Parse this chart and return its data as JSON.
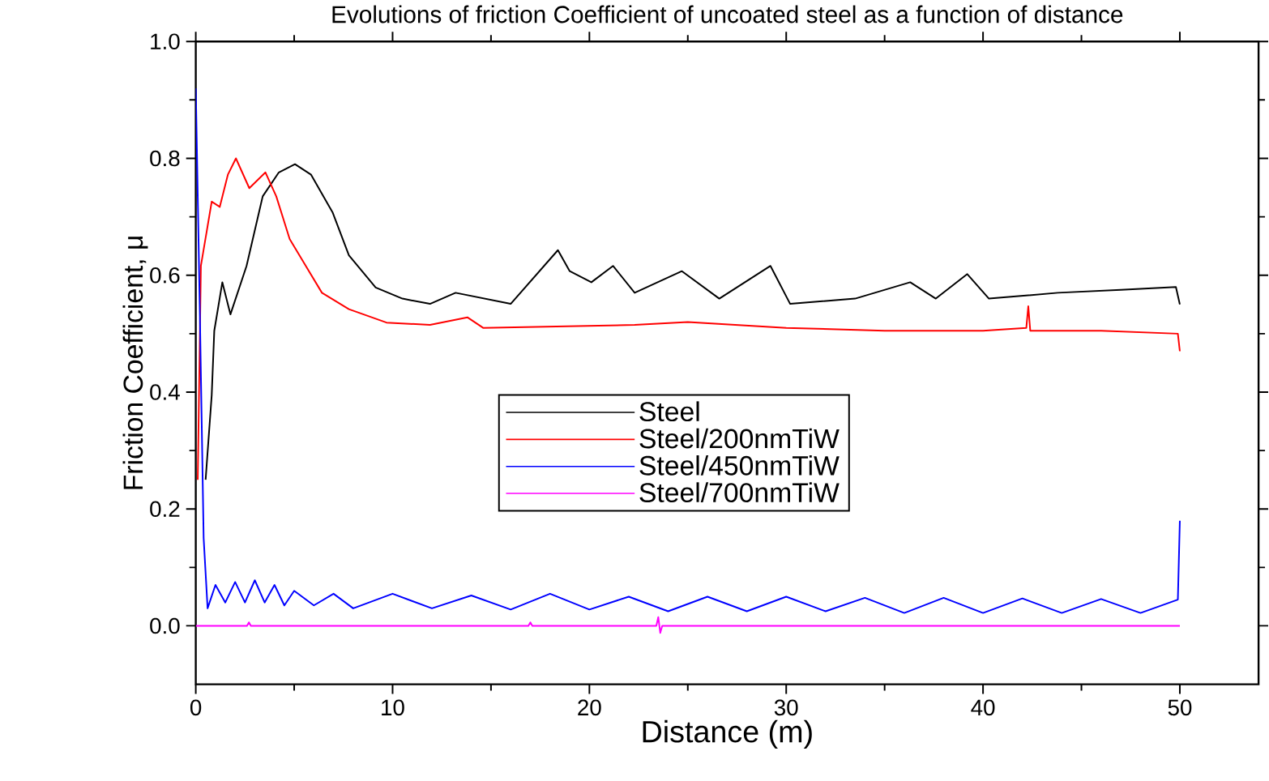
{
  "chart_data": {
    "type": "line",
    "title": "Evolutions of friction Coefficient of uncoated steel as a function of distance",
    "xlabel": "Distance (m)",
    "ylabel": "Friction Coefficient, μ",
    "xlim": [
      0,
      54
    ],
    "ylim": [
      -0.1,
      1.0
    ],
    "xticks": [
      0,
      10,
      20,
      30,
      40,
      50
    ],
    "yticks": [
      {
        "value": 0,
        "label": "0.0"
      },
      {
        "value": 0.2,
        "label": "0.2"
      },
      {
        "value": 0.4,
        "label": "0.4"
      },
      {
        "value": 0.6,
        "label": "0.6"
      },
      {
        "value": 0.8,
        "label": "0.8"
      },
      {
        "value": 1.0,
        "label": "1.0"
      }
    ],
    "legend": "center",
    "series": [
      {
        "name": "Steel",
        "color": "#000000",
        "x": [
          0.5,
          0.81,
          0.94,
          1.35,
          1.76,
          2.58,
          3.4,
          4.22,
          5.04,
          5.86,
          6.96,
          7.78,
          9.14,
          10.5,
          11.9,
          13.2,
          16.0,
          18.4,
          19.0,
          20.1,
          21.2,
          22.3,
          24.7,
          26.6,
          29.2,
          30.2,
          33.5,
          36.3,
          37.6,
          39.2,
          40.3,
          43.8,
          47.0,
          49.8,
          50.0
        ],
        "values": [
          0.25,
          0.395,
          0.505,
          0.588,
          0.533,
          0.616,
          0.735,
          0.776,
          0.79,
          0.772,
          0.707,
          0.634,
          0.579,
          0.56,
          0.551,
          0.57,
          0.551,
          0.643,
          0.607,
          0.588,
          0.616,
          0.57,
          0.607,
          0.56,
          0.616,
          0.551,
          0.56,
          0.588,
          0.56,
          0.602,
          0.56,
          0.57,
          0.575,
          0.58,
          0.55
        ]
      },
      {
        "name": "Steel/200nmTiW",
        "color": "#ff0000",
        "x": [
          0.1,
          0.26,
          0.81,
          1.22,
          1.63,
          2.04,
          2.72,
          3.54,
          4.09,
          4.77,
          5.59,
          6.41,
          7.78,
          9.69,
          11.9,
          13.8,
          14.6,
          22.3,
          25.0,
          30.0,
          35.0,
          40.0,
          42.2,
          42.3,
          42.4,
          46.0,
          49.9,
          50.0
        ],
        "values": [
          0.25,
          0.616,
          0.726,
          0.717,
          0.772,
          0.8,
          0.749,
          0.776,
          0.735,
          0.662,
          0.616,
          0.57,
          0.542,
          0.519,
          0.515,
          0.528,
          0.51,
          0.515,
          0.52,
          0.51,
          0.505,
          0.505,
          0.51,
          0.547,
          0.505,
          0.505,
          0.5,
          0.47
        ]
      },
      {
        "name": "Steel/450nmTiW",
        "color": "#0000ff",
        "x": [
          0.0,
          0.2,
          0.4,
          0.6,
          1.0,
          1.5,
          2.0,
          2.5,
          3.0,
          3.5,
          4.0,
          4.5,
          5.0,
          6.0,
          7.0,
          8.0,
          10.0,
          12.0,
          14.0,
          16.0,
          18.0,
          20.0,
          22.0,
          24.0,
          26.0,
          28.0,
          30.0,
          32.0,
          34.0,
          36.0,
          38.0,
          40.0,
          42.0,
          44.0,
          46.0,
          48.0,
          49.9,
          50.0
        ],
        "values": [
          0.92,
          0.55,
          0.15,
          0.03,
          0.07,
          0.04,
          0.075,
          0.04,
          0.078,
          0.04,
          0.07,
          0.035,
          0.06,
          0.035,
          0.055,
          0.03,
          0.055,
          0.03,
          0.052,
          0.028,
          0.055,
          0.028,
          0.05,
          0.025,
          0.05,
          0.025,
          0.05,
          0.025,
          0.048,
          0.022,
          0.048,
          0.022,
          0.047,
          0.022,
          0.046,
          0.022,
          0.045,
          0.18
        ]
      },
      {
        "name": "Steel/700nmTiW",
        "color": "#ff00ff",
        "x": [
          0.0,
          2.6,
          2.7,
          2.8,
          16.9,
          17.0,
          17.1,
          23.4,
          23.5,
          23.6,
          23.7,
          50.0
        ],
        "values": [
          0.0,
          0.0,
          0.006,
          0.0,
          0.0,
          0.006,
          0.0,
          0.0,
          0.015,
          -0.012,
          0.0,
          0.0
        ]
      }
    ]
  }
}
